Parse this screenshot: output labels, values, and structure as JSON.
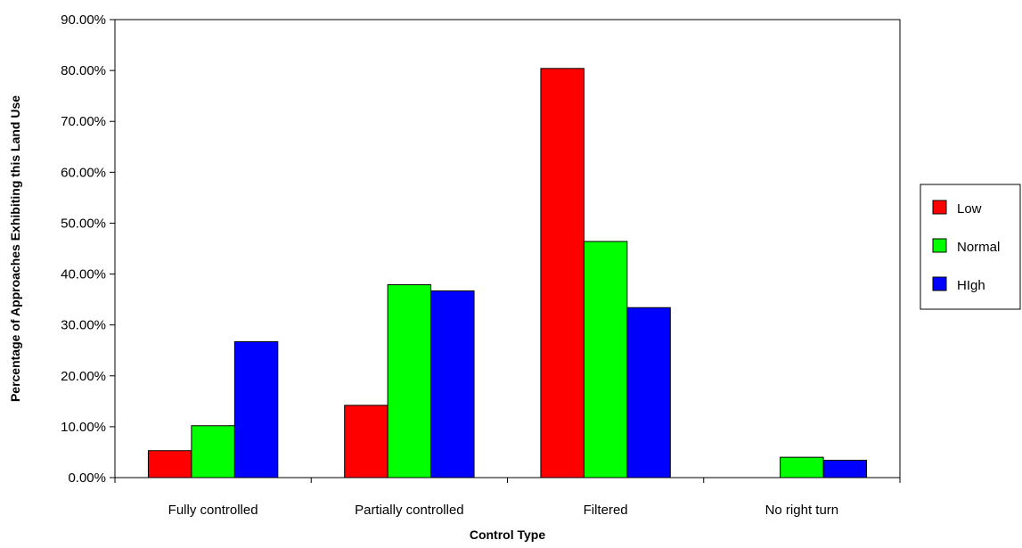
{
  "chart_data": {
    "type": "bar",
    "title": "",
    "xlabel": "Control Type",
    "ylabel": "Percentage of Approaches Exhibiting this Land Use",
    "categories": [
      "Fully controlled",
      "Partially controlled",
      "Filtered",
      "No right turn"
    ],
    "series": [
      {
        "name": "Low",
        "color": "#ff0000",
        "values": [
          5.3,
          14.2,
          80.4,
          0.0
        ]
      },
      {
        "name": "Normal",
        "color": "#00ff00",
        "values": [
          10.2,
          37.9,
          46.4,
          4.0
        ]
      },
      {
        "name": "HIgh",
        "color": "#0000ff",
        "values": [
          26.7,
          36.7,
          33.4,
          3.4
        ]
      }
    ],
    "ylim": [
      0,
      90
    ],
    "yticks": [
      "0.00%",
      "10.00%",
      "20.00%",
      "30.00%",
      "40.00%",
      "50.00%",
      "60.00%",
      "70.00%",
      "80.00%",
      "90.00%"
    ],
    "grid": false,
    "legend_position": "right"
  }
}
